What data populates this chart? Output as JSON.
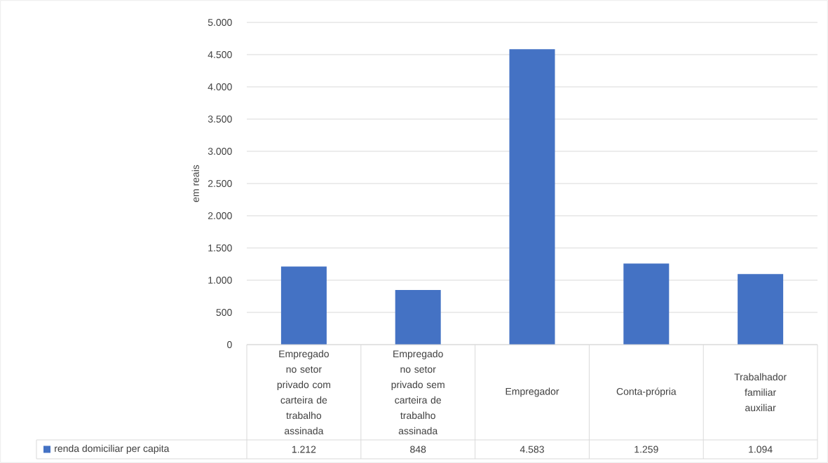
{
  "chart_data": {
    "type": "bar",
    "categories": [
      "Empregado no setor privado com carteira de trabalho assinada",
      "Empregado no setor privado sem carteira de trabalho assinada",
      "Empregador",
      "Conta-própria",
      "Trabalhador familiar auxiliar"
    ],
    "series": [
      {
        "name": "renda domiciliar per capita",
        "color": "#4472c4",
        "values": [
          1212,
          848,
          4583,
          1259,
          1094
        ],
        "value_labels": [
          "1.212",
          "848",
          "4.583",
          "1.259",
          "1.094"
        ]
      }
    ],
    "ylabel": "em reais",
    "ylim": [
      0,
      5000
    ],
    "yticks": [
      {
        "value": 0,
        "label": "0"
      },
      {
        "value": 500,
        "label": "500"
      },
      {
        "value": 1000,
        "label": "1.000"
      },
      {
        "value": 1500,
        "label": "1.500"
      },
      {
        "value": 2000,
        "label": "2.000"
      },
      {
        "value": 2500,
        "label": "2.500"
      },
      {
        "value": 3000,
        "label": "3.000"
      },
      {
        "value": 3500,
        "label": "3.500"
      },
      {
        "value": 4000,
        "label": "4.000"
      },
      {
        "value": 4500,
        "label": "4.500"
      },
      {
        "value": 5000,
        "label": "5.000"
      }
    ],
    "grid": "y",
    "legend": "bottom"
  }
}
